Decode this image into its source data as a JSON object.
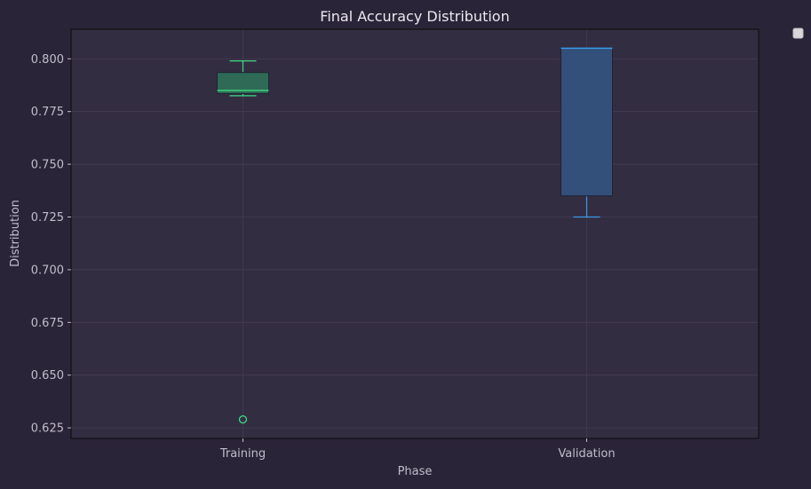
{
  "chart_data": {
    "type": "box",
    "title": "Final Accuracy Distribution",
    "xlabel": "Phase",
    "ylabel": "Distribution",
    "ylim": [
      0.62,
      0.814
    ],
    "yticks": [
      0.625,
      0.65,
      0.675,
      0.7,
      0.725,
      0.75,
      0.775,
      0.8
    ],
    "ytick_labels": [
      "0.625",
      "0.650",
      "0.675",
      "0.700",
      "0.725",
      "0.750",
      "0.775",
      "0.800"
    ],
    "grid": true,
    "legend": "top-right, empty",
    "categories": [
      "Training",
      "Validation"
    ],
    "boxes": [
      {
        "category": "Training",
        "whisker_low": 0.7825,
        "q1": 0.7835,
        "median": 0.785,
        "q3": 0.7935,
        "whisker_high": 0.799,
        "outliers": [
          0.629
        ],
        "color": "#3ddc84",
        "fill": "#2e6a55"
      },
      {
        "category": "Validation",
        "whisker_low": 0.725,
        "q1": 0.735,
        "median": 0.805,
        "q3": 0.805,
        "whisker_high": 0.805,
        "outliers": [],
        "color": "#3a9ae8",
        "fill": "#33507a"
      }
    ]
  },
  "colors": {
    "figure_bg": "#2a2438",
    "axes_bg": "#332d42",
    "grid": "#443e54",
    "text": "#c0bccb",
    "title": "#ebe8f0",
    "spine": "#0a0a0a"
  }
}
